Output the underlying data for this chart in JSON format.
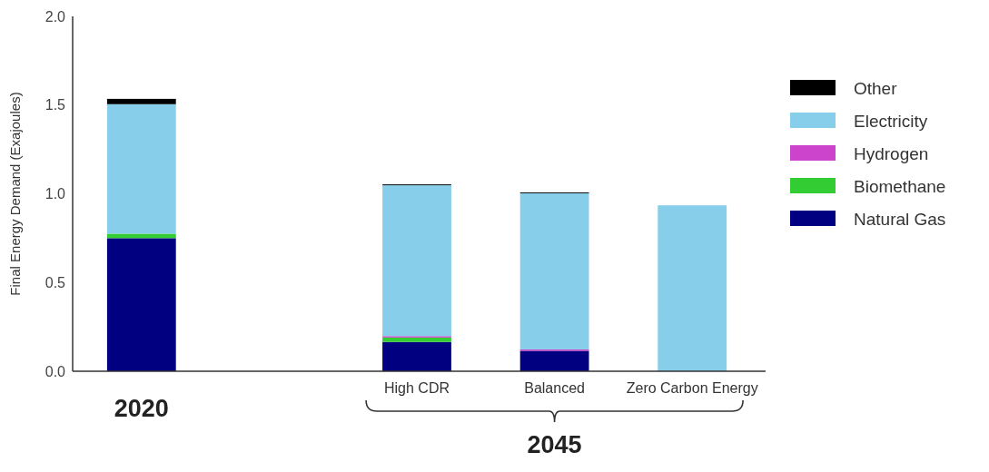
{
  "chart_data": {
    "type": "bar",
    "stacked": true,
    "ylabel": "Final Energy Demand (Exajoules)",
    "categories": [
      "2020",
      null,
      "High CDR",
      "Balanced",
      "Zero Carbon Energy"
    ],
    "series": [
      {
        "name": "Natural Gas",
        "color": "#000080",
        "values": [
          0.75,
          null,
          0.165,
          0.115,
          0
        ]
      },
      {
        "name": "Biomethane",
        "color": "#33cc33",
        "values": [
          0.025,
          null,
          0.025,
          0,
          0
        ]
      },
      {
        "name": "Hydrogen",
        "color": "#cc44cc",
        "values": [
          0,
          null,
          0.008,
          0.008,
          0
        ]
      },
      {
        "name": "Electricity",
        "color": "#87ceeb",
        "values": [
          0.73,
          null,
          0.85,
          0.88,
          0.935
        ]
      },
      {
        "name": "Other",
        "color": "#000000",
        "values": [
          0.03,
          null,
          0.005,
          0.005,
          0
        ]
      }
    ],
    "ylim": [
      0,
      2
    ],
    "yticks": [
      {
        "value": 0,
        "label": "0.0"
      },
      {
        "value": 0.5,
        "label": "0.5"
      },
      {
        "value": 1,
        "label": "1.0"
      },
      {
        "value": 1.5,
        "label": "1.5"
      },
      {
        "value": 2,
        "label": "2.0"
      }
    ],
    "grid": false,
    "legend": "right",
    "annotations": [
      "2045"
    ]
  }
}
